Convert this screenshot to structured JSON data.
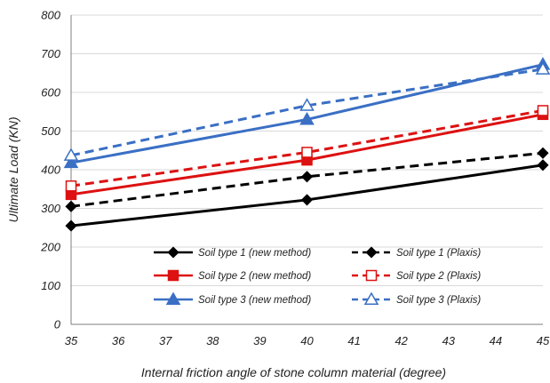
{
  "chart_data": {
    "type": "line",
    "xlabel": "Internal friction angle of stone column material (degree)",
    "ylabel": "Ultimate Load (KN)",
    "xlim": [
      35,
      45
    ],
    "ylim": [
      0,
      800
    ],
    "xticks": [
      "35",
      "36",
      "37",
      "38",
      "39",
      "40",
      "41",
      "42",
      "43",
      "44",
      "45"
    ],
    "yticks": [
      "0",
      "100",
      "200",
      "300",
      "400",
      "500",
      "600",
      "700",
      "800"
    ],
    "grid": "horizontal",
    "legend_position": "bottom-right",
    "series": [
      {
        "name": "Soil type 1 (new method)",
        "x": [
          35,
          40,
          45
        ],
        "y": [
          255,
          322,
          412
        ],
        "color": "#000000",
        "dash": "solid",
        "marker": "diamond",
        "filled": true
      },
      {
        "name": "Soil type 1 (Plaxis)",
        "x": [
          35,
          40,
          45
        ],
        "y": [
          305,
          382,
          443
        ],
        "color": "#000000",
        "dash": "dashed",
        "marker": "diamond",
        "filled": true
      },
      {
        "name": "Soil type 2 (new method)",
        "x": [
          35,
          40,
          45
        ],
        "y": [
          336,
          425,
          543
        ],
        "color": "#dd1111",
        "dash": "solid",
        "marker": "square",
        "filled": true
      },
      {
        "name": "Soil type 2 (Plaxis)",
        "x": [
          35,
          40,
          45
        ],
        "y": [
          358,
          445,
          553
        ],
        "color": "#dd1111",
        "dash": "dashed",
        "marker": "square",
        "filled": false
      },
      {
        "name": "Soil type 3 (new method)",
        "x": [
          35,
          40,
          45
        ],
        "y": [
          418,
          530,
          672
        ],
        "color": "#3a6fc4",
        "dash": "solid",
        "marker": "triangle",
        "filled": true
      },
      {
        "name": "Soil type 3 (Plaxis)",
        "x": [
          35,
          40,
          45
        ],
        "y": [
          437,
          566,
          660
        ],
        "color": "#3a6fc4",
        "dash": "dashed",
        "marker": "triangle",
        "filled": false
      }
    ]
  }
}
